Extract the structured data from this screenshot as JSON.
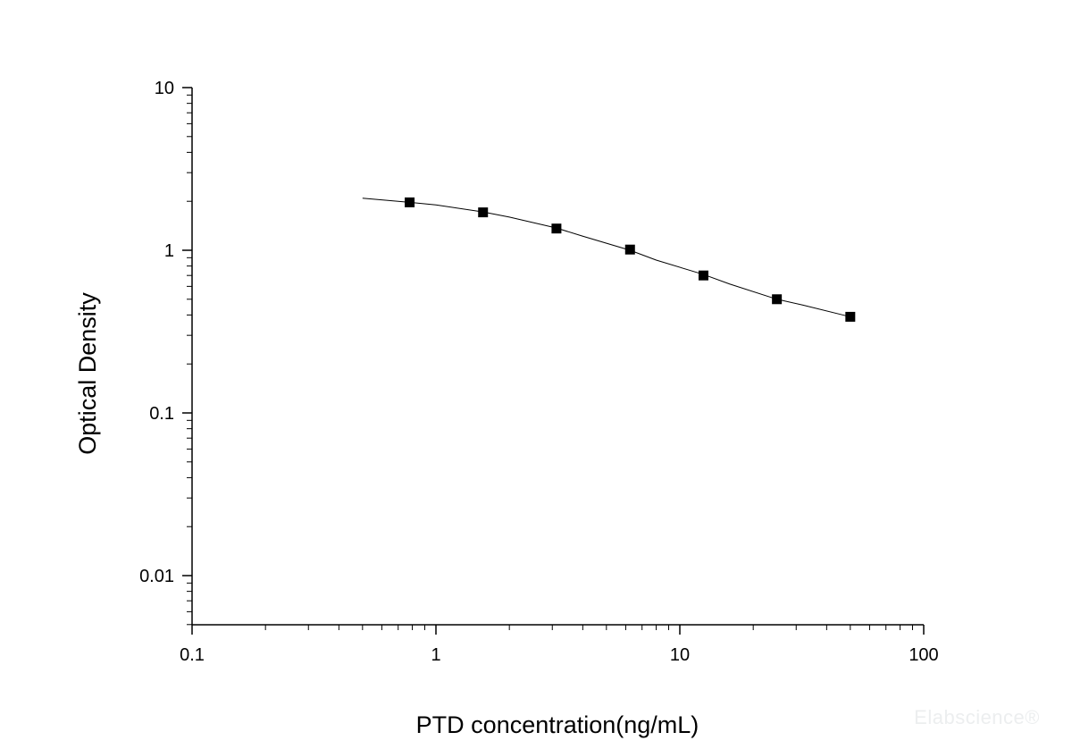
{
  "chart_data": {
    "type": "scatter",
    "title": "",
    "xlabel": "PTD concentration(ng/mL)",
    "ylabel": "Optical Density",
    "xscale": "log",
    "yscale": "log",
    "xlim": [
      0.1,
      100
    ],
    "ylim": [
      0.005,
      10
    ],
    "x_ticks": [
      {
        "value": 0.1,
        "label": "0.1"
      },
      {
        "value": 1,
        "label": "1"
      },
      {
        "value": 10,
        "label": "10"
      },
      {
        "value": 100,
        "label": "100"
      }
    ],
    "y_ticks": [
      {
        "value": 0.01,
        "label": "0.01"
      },
      {
        "value": 0.1,
        "label": "0.1"
      },
      {
        "value": 1,
        "label": "1"
      },
      {
        "value": 10,
        "label": "10"
      }
    ],
    "grid": false,
    "series": [
      {
        "marker": "square",
        "color": "#000000",
        "x": [
          0.78,
          1.56,
          3.12,
          6.25,
          12.5,
          25,
          50
        ],
        "y": [
          1.97,
          1.71,
          1.36,
          1.01,
          0.7,
          0.5,
          0.39
        ]
      }
    ],
    "fit_curve": {
      "x": [
        0.5,
        0.78,
        1.0,
        1.56,
        2.0,
        3.12,
        4.0,
        6.25,
        8.0,
        12.5,
        16.0,
        25,
        32,
        50
      ],
      "y": [
        2.09,
        1.97,
        1.9,
        1.72,
        1.6,
        1.37,
        1.22,
        1.0,
        0.87,
        0.71,
        0.62,
        0.5,
        0.46,
        0.39
      ],
      "color": "#000000"
    }
  },
  "watermark": "Elabscience®"
}
